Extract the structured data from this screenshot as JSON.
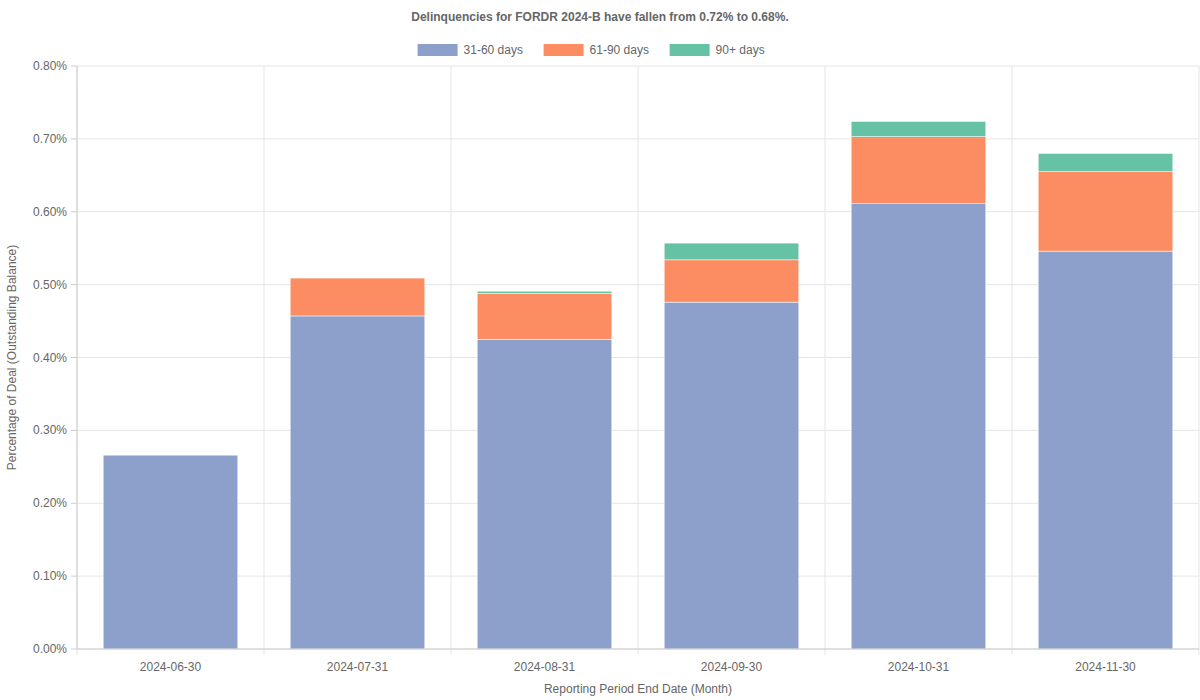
{
  "chart_data": {
    "type": "bar",
    "title": "Delinquencies for FORDR 2024-B have fallen from 0.72% to 0.68%.",
    "x_label": "Reporting Period End Date (Month)",
    "y_label": "Percentage of Deal (Outstanding Balance)",
    "categories": [
      "2024-06-30",
      "2024-07-31",
      "2024-08-31",
      "2024-09-30",
      "2024-10-31",
      "2024-11-30"
    ],
    "series": [
      {
        "name": "31-60 days",
        "color": "#8da0cb",
        "values": [
          0.266,
          0.457,
          0.425,
          0.476,
          0.611,
          0.546
        ]
      },
      {
        "name": "61-90 days",
        "color": "#fc8d62",
        "values": [
          0,
          0.052,
          0.063,
          0.058,
          0.092,
          0.109
        ]
      },
      {
        "name": "90+ days",
        "color": "#66c2a5",
        "values": [
          0,
          0,
          0.003,
          0.023,
          0.021,
          0.025
        ]
      }
    ],
    "ylim": [
      0,
      0.8
    ],
    "yticks": [
      {
        "value": 0,
        "label": "0.00%"
      },
      {
        "value": 0.1,
        "label": "0.10%"
      },
      {
        "value": 0.2,
        "label": "0.20%"
      },
      {
        "value": 0.3,
        "label": "0.30%"
      },
      {
        "value": 0.4,
        "label": "0.40%"
      },
      {
        "value": 0.5,
        "label": "0.50%"
      },
      {
        "value": 0.6,
        "label": "0.60%"
      },
      {
        "value": 0.7,
        "label": "0.70%"
      },
      {
        "value": 0.8,
        "label": "0.80%"
      }
    ],
    "stacked": true,
    "grid": true,
    "legend": "top"
  }
}
